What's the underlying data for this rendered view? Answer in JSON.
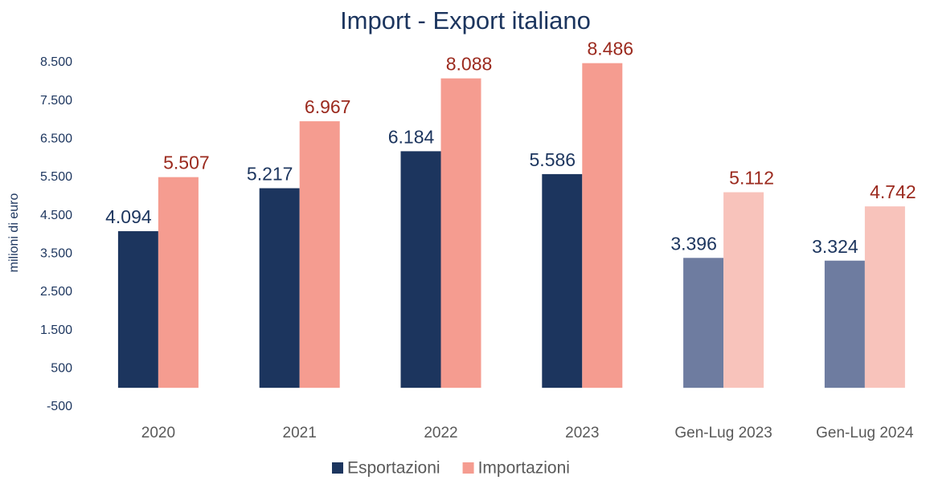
{
  "chart_data": {
    "type": "bar",
    "title": "Import - Export italiano",
    "y_label": "milioni di euro",
    "categories": [
      "2020",
      "2021",
      "2022",
      "2023",
      "Gen-Lug 2023",
      "Gen-Lug 2024"
    ],
    "series": [
      {
        "name": "Esportazioni",
        "color": "#1c355e",
        "label_color": "#1c355e",
        "colors": [
          "#1c355e",
          "#1c355e",
          "#1c355e",
          "#1c355e",
          "#6e7ca0",
          "#6e7ca0"
        ],
        "values": [
          4094,
          5217,
          6184,
          5586,
          3396,
          3324
        ],
        "value_labels": [
          "4.094",
          "5.217",
          "6.184",
          "5.586",
          "3.396",
          "3.324"
        ]
      },
      {
        "name": "Importazioni",
        "color": "#f59c90",
        "label_color": "#9b2a1e",
        "colors": [
          "#f59c90",
          "#f59c90",
          "#f59c90",
          "#f59c90",
          "#f8c3bb",
          "#f8c3bb"
        ],
        "values": [
          5507,
          6967,
          8088,
          8486,
          5112,
          4742
        ],
        "value_labels": [
          "5.507",
          "6.967",
          "8.088",
          "8.486",
          "5.112",
          "4.742"
        ]
      }
    ],
    "ylim": [
      -500,
      8500
    ],
    "yticks": [
      -500,
      500,
      {
        "value": 1500,
        "label": "1.500"
      },
      {
        "value": 2500,
        "label": "2.500"
      },
      {
        "value": 3500,
        "label": "3.500"
      },
      {
        "value": 4500,
        "label": "4.500"
      },
      {
        "value": 5500,
        "label": "5.500"
      },
      {
        "value": 6500,
        "label": "6.500"
      },
      {
        "value": 7500,
        "label": "7.500"
      },
      {
        "value": 8500,
        "label": "8.500"
      }
    ],
    "grid": false,
    "legend": "bottom"
  }
}
